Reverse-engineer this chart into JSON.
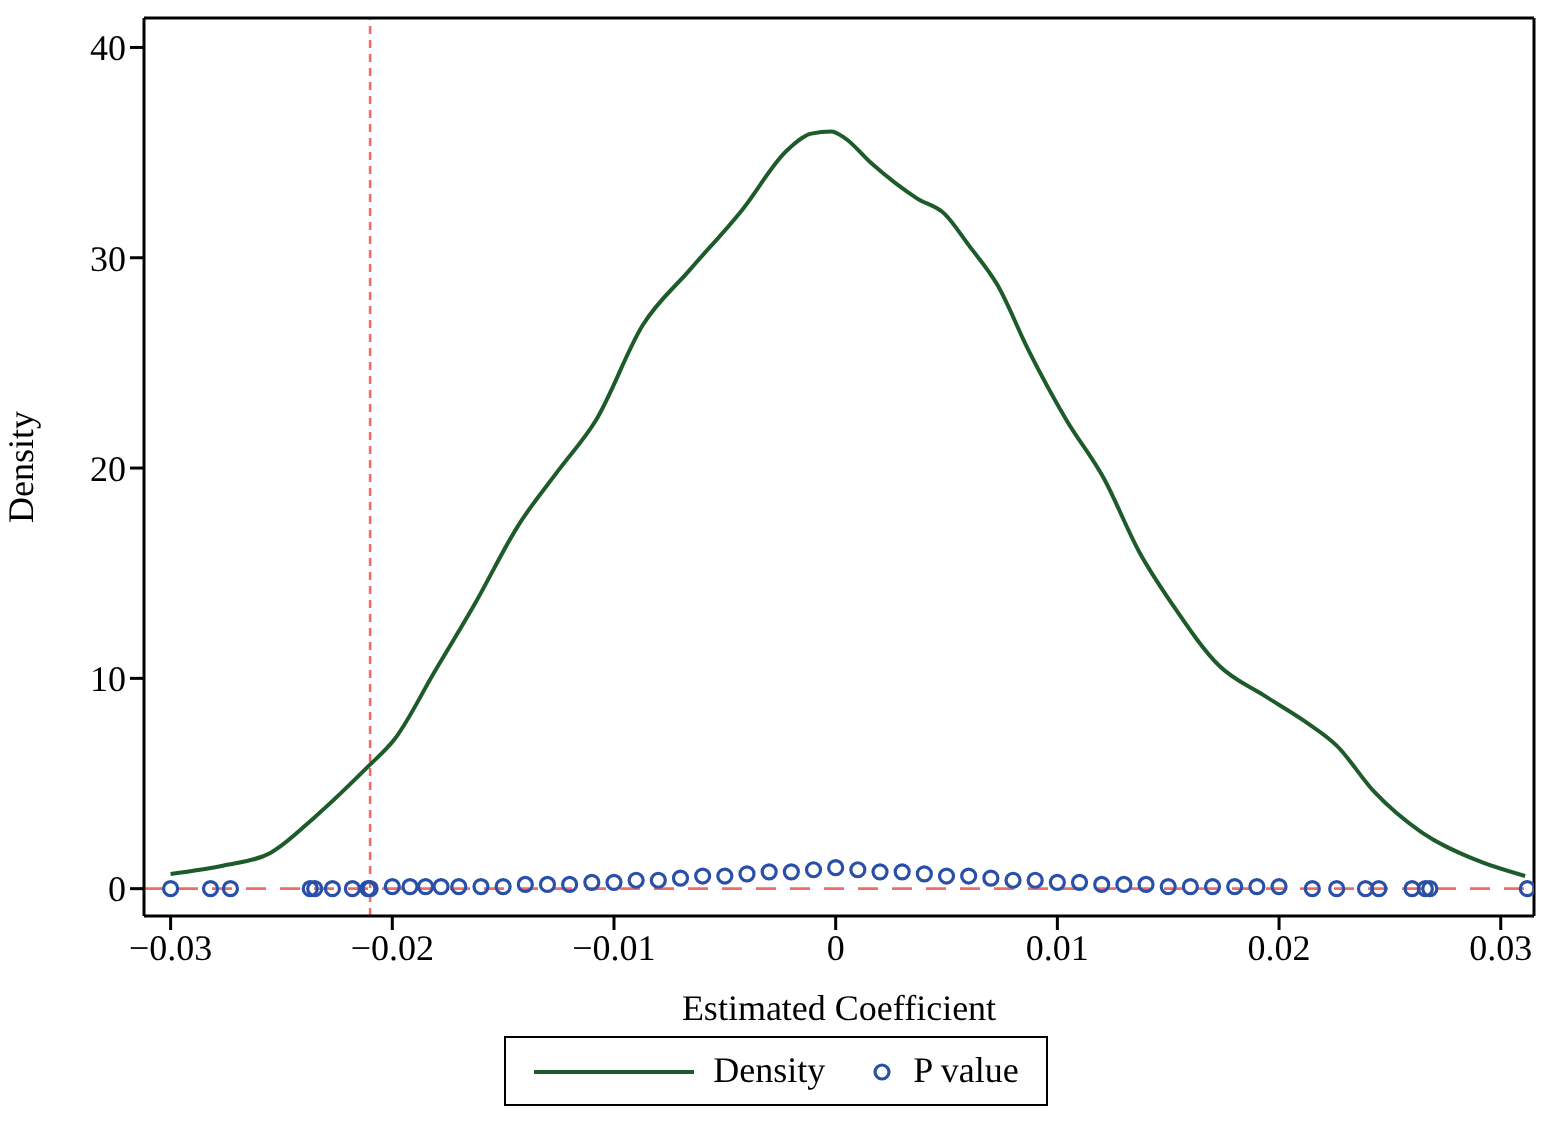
{
  "chart_data": {
    "type": "line",
    "xlabel": "Estimated Coefficient",
    "ylabel": "Density",
    "xlim": [
      -0.0312,
      0.0315
    ],
    "ylim": [
      -1.3,
      41.4
    ],
    "xticks": [
      {
        "value": -0.03,
        "label": "−0.03"
      },
      {
        "value": -0.02,
        "label": "−0.02"
      },
      {
        "value": -0.01,
        "label": "−0.01"
      },
      0,
      0.01,
      0.02,
      0.03
    ],
    "yticks": [
      0,
      10,
      20,
      30,
      40
    ],
    "legend": "bottom",
    "ref_lines": [
      {
        "axis": "x",
        "value": -0.021,
        "color": "#f26b6b",
        "line_style": "dashed"
      },
      {
        "axis": "y",
        "value": 0,
        "color": "#f26b6b",
        "line_style": "dashed"
      }
    ],
    "series": [
      {
        "name": "Density",
        "color": "#1e5b2a",
        "marker": "none",
        "line_style": "solid",
        "x": [
          -0.03,
          -0.0276,
          -0.0255,
          -0.0235,
          -0.0211,
          -0.0199,
          -0.0181,
          -0.0163,
          -0.0143,
          -0.0125,
          -0.0108,
          -0.0087,
          -0.0066,
          -0.0042,
          -0.0022,
          -0.0011,
          -0.0002,
          0.0004,
          0.0016,
          0.0037,
          0.0049,
          0.006,
          0.0073,
          0.0087,
          0.0104,
          0.0121,
          0.0137,
          0.0152,
          0.0173,
          0.0193,
          0.0211,
          0.0226,
          0.0243,
          0.0264,
          0.0288,
          0.0311
        ],
        "values": [
          0.7,
          1.1,
          1.7,
          3.4,
          5.8,
          7.1,
          10.3,
          13.5,
          17.3,
          19.9,
          22.3,
          26.8,
          29.4,
          32.3,
          35.1,
          35.9,
          36.0,
          35.7,
          34.5,
          32.8,
          32.1,
          30.6,
          28.7,
          25.6,
          22.3,
          19.5,
          16.0,
          13.5,
          10.6,
          9.2,
          8.0,
          6.8,
          4.6,
          2.7,
          1.4,
          0.6
        ]
      },
      {
        "name": "P value",
        "type": "scatter",
        "color": "#2a4fa8",
        "marker": "circle",
        "x": [
          -0.03,
          -0.0282,
          -0.0273,
          -0.0237,
          -0.0235,
          -0.0227,
          -0.0218,
          -0.0211,
          -0.021,
          -0.02,
          -0.0192,
          -0.0185,
          -0.0178,
          -0.017,
          -0.016,
          -0.015,
          -0.014,
          -0.013,
          -0.012,
          -0.011,
          -0.01,
          -0.009,
          -0.008,
          -0.007,
          -0.006,
          -0.005,
          -0.004,
          -0.003,
          -0.002,
          -0.001,
          0,
          0.001,
          0.002,
          0.003,
          0.004,
          0.005,
          0.006,
          0.007,
          0.008,
          0.009,
          0.01,
          0.011,
          0.012,
          0.013,
          0.014,
          0.015,
          0.016,
          0.017,
          0.018,
          0.019,
          0.02,
          0.0215,
          0.0226,
          0.0239,
          0.0245,
          0.026,
          0.0266,
          0.0268,
          0.0312
        ],
        "values": [
          0,
          0,
          0,
          0,
          0,
          0,
          0,
          0,
          0,
          0.1,
          0.1,
          0.1,
          0.1,
          0.1,
          0.1,
          0.1,
          0.2,
          0.2,
          0.2,
          0.3,
          0.3,
          0.4,
          0.4,
          0.5,
          0.6,
          0.6,
          0.7,
          0.8,
          0.8,
          0.9,
          1.0,
          0.9,
          0.8,
          0.8,
          0.7,
          0.6,
          0.6,
          0.5,
          0.4,
          0.4,
          0.3,
          0.3,
          0.2,
          0.2,
          0.2,
          0.1,
          0.1,
          0.1,
          0.1,
          0.1,
          0.1,
          0,
          0,
          0,
          0,
          0,
          0,
          0,
          0
        ]
      }
    ]
  }
}
